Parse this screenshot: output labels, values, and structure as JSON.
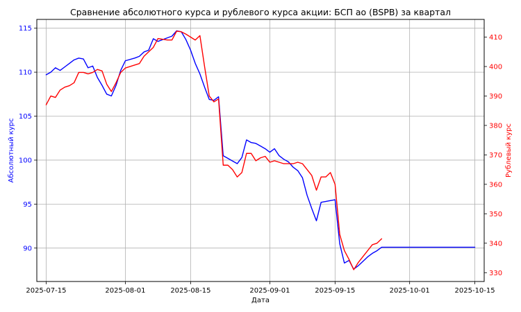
{
  "chart_data": {
    "type": "line",
    "title": "Сравнение абсолютного курса и рублевого курса акции: БСП ао (BSPB) за квартал",
    "xlabel": "Дата",
    "ylabel_left": "Абсолютный курс",
    "ylabel_right": "Рублевый курс",
    "xlim": [
      "2025-07-13",
      "2025-10-17"
    ],
    "ylim_left": [
      86.2,
      116.0
    ],
    "ylim_right": [
      327.0,
      416.0
    ],
    "x_ticks": [
      "2025-07-15",
      "2025-08-01",
      "2025-08-15",
      "2025-09-01",
      "2025-09-15",
      "2025-10-01",
      "2025-10-15"
    ],
    "y_ticks_left": [
      90,
      95,
      100,
      105,
      110,
      115
    ],
    "y_ticks_right": [
      330,
      340,
      350,
      360,
      370,
      380,
      390,
      400,
      410
    ],
    "grid": true,
    "colors": {
      "left": "#0000ff",
      "right": "#ff0000",
      "grid": "#b0b0b0"
    },
    "series": [
      {
        "axis": "left",
        "color": "#0000ff",
        "points": [
          [
            "2025-07-15",
            109.7
          ],
          [
            "2025-07-16",
            110.0
          ],
          [
            "2025-07-17",
            110.5
          ],
          [
            "2025-07-18",
            110.2
          ],
          [
            "2025-07-19",
            110.6
          ],
          [
            "2025-07-20",
            111.0
          ],
          [
            "2025-07-21",
            111.4
          ],
          [
            "2025-07-22",
            111.6
          ],
          [
            "2025-07-23",
            111.5
          ],
          [
            "2025-07-24",
            110.5
          ],
          [
            "2025-07-25",
            110.7
          ],
          [
            "2025-07-26",
            109.4
          ],
          [
            "2025-07-27",
            108.5
          ],
          [
            "2025-07-28",
            107.5
          ],
          [
            "2025-07-29",
            107.3
          ],
          [
            "2025-07-30",
            108.5
          ],
          [
            "2025-07-31",
            110.2
          ],
          [
            "2025-08-01",
            111.3
          ],
          [
            "2025-08-03",
            111.6
          ],
          [
            "2025-08-04",
            111.8
          ],
          [
            "2025-08-05",
            112.3
          ],
          [
            "2025-08-06",
            112.5
          ],
          [
            "2025-08-07",
            113.8
          ],
          [
            "2025-08-08",
            113.5
          ],
          [
            "2025-08-10",
            113.9
          ],
          [
            "2025-08-11",
            114.1
          ],
          [
            "2025-08-12",
            114.7
          ],
          [
            "2025-08-13",
            114.6
          ],
          [
            "2025-08-14",
            113.7
          ],
          [
            "2025-08-15",
            112.5
          ],
          [
            "2025-08-16",
            111.0
          ],
          [
            "2025-08-17",
            109.8
          ],
          [
            "2025-08-18",
            108.3
          ],
          [
            "2025-08-19",
            106.9
          ],
          [
            "2025-08-20",
            106.8
          ],
          [
            "2025-08-21",
            107.2
          ],
          [
            "2025-08-22",
            100.5
          ],
          [
            "2025-08-23",
            100.2
          ],
          [
            "2025-08-24",
            99.9
          ],
          [
            "2025-08-25",
            99.6
          ],
          [
            "2025-08-26",
            100.3
          ],
          [
            "2025-08-27",
            102.3
          ],
          [
            "2025-08-28",
            102.0
          ],
          [
            "2025-08-29",
            101.9
          ],
          [
            "2025-08-30",
            101.6
          ],
          [
            "2025-08-31",
            101.3
          ],
          [
            "2025-09-01",
            100.9
          ],
          [
            "2025-09-02",
            101.3
          ],
          [
            "2025-09-03",
            100.5
          ],
          [
            "2025-09-04",
            100.1
          ],
          [
            "2025-09-05",
            99.8
          ],
          [
            "2025-09-06",
            99.2
          ],
          [
            "2025-09-07",
            98.8
          ],
          [
            "2025-09-08",
            98.0
          ],
          [
            "2025-09-09",
            96.0
          ],
          [
            "2025-09-10",
            94.5
          ],
          [
            "2025-09-11",
            93.1
          ],
          [
            "2025-09-12",
            95.2
          ],
          [
            "2025-09-13",
            95.3
          ],
          [
            "2025-09-14",
            95.4
          ],
          [
            "2025-09-15",
            95.5
          ],
          [
            "2025-09-16",
            90.5
          ],
          [
            "2025-09-17",
            88.3
          ],
          [
            "2025-09-18",
            88.6
          ],
          [
            "2025-09-19",
            87.6
          ],
          [
            "2025-09-20",
            88.0
          ],
          [
            "2025-09-21",
            88.5
          ],
          [
            "2025-09-22",
            89.0
          ],
          [
            "2025-09-23",
            89.4
          ],
          [
            "2025-09-24",
            89.7
          ],
          [
            "2025-09-25",
            90.1
          ],
          [
            "2025-10-15",
            90.1
          ]
        ]
      },
      {
        "axis": "right",
        "color": "#ff0000",
        "points": [
          [
            "2025-07-15",
            387.0
          ],
          [
            "2025-07-16",
            390.0
          ],
          [
            "2025-07-17",
            389.5
          ],
          [
            "2025-07-18",
            392.0
          ],
          [
            "2025-07-19",
            393.0
          ],
          [
            "2025-07-20",
            393.5
          ],
          [
            "2025-07-21",
            394.5
          ],
          [
            "2025-07-22",
            398.0
          ],
          [
            "2025-07-23",
            398.0
          ],
          [
            "2025-07-24",
            397.5
          ],
          [
            "2025-07-25",
            398.0
          ],
          [
            "2025-07-26",
            399.0
          ],
          [
            "2025-07-27",
            398.5
          ],
          [
            "2025-07-28",
            394.0
          ],
          [
            "2025-07-29",
            391.5
          ],
          [
            "2025-07-30",
            394.5
          ],
          [
            "2025-07-31",
            398.0
          ],
          [
            "2025-08-01",
            399.5
          ],
          [
            "2025-08-03",
            400.5
          ],
          [
            "2025-08-04",
            401.0
          ],
          [
            "2025-08-05",
            403.5
          ],
          [
            "2025-08-06",
            405.0
          ],
          [
            "2025-08-07",
            406.5
          ],
          [
            "2025-08-08",
            409.5
          ],
          [
            "2025-08-10",
            409.0
          ],
          [
            "2025-08-11",
            409.0
          ],
          [
            "2025-08-12",
            412.0
          ],
          [
            "2025-08-13",
            411.8
          ],
          [
            "2025-08-14",
            411.0
          ],
          [
            "2025-08-15",
            410.0
          ],
          [
            "2025-08-16",
            409.0
          ],
          [
            "2025-08-17",
            410.5
          ],
          [
            "2025-08-18",
            400.0
          ],
          [
            "2025-08-19",
            390.0
          ],
          [
            "2025-08-20",
            388.0
          ],
          [
            "2025-08-21",
            389.0
          ],
          [
            "2025-08-22",
            366.5
          ],
          [
            "2025-08-23",
            366.5
          ],
          [
            "2025-08-24",
            365.0
          ],
          [
            "2025-08-25",
            362.5
          ],
          [
            "2025-08-26",
            364.0
          ],
          [
            "2025-08-27",
            370.5
          ],
          [
            "2025-08-28",
            370.5
          ],
          [
            "2025-08-29",
            368.0
          ],
          [
            "2025-08-30",
            369.0
          ],
          [
            "2025-08-31",
            369.5
          ],
          [
            "2025-09-01",
            367.5
          ],
          [
            "2025-09-02",
            368.0
          ],
          [
            "2025-09-03",
            367.5
          ],
          [
            "2025-09-04",
            367.0
          ],
          [
            "2025-09-05",
            367.0
          ],
          [
            "2025-09-06",
            367.0
          ],
          [
            "2025-09-07",
            367.5
          ],
          [
            "2025-09-08",
            367.0
          ],
          [
            "2025-09-09",
            365.0
          ],
          [
            "2025-09-10",
            363.0
          ],
          [
            "2025-09-11",
            358.0
          ],
          [
            "2025-09-12",
            362.5
          ],
          [
            "2025-09-13",
            362.5
          ],
          [
            "2025-09-14",
            364.0
          ],
          [
            "2025-09-15",
            360.0
          ],
          [
            "2025-09-16",
            343.0
          ],
          [
            "2025-09-17",
            337.5
          ],
          [
            "2025-09-18",
            334.5
          ],
          [
            "2025-09-19",
            331.0
          ],
          [
            "2025-09-20",
            333.5
          ],
          [
            "2025-09-21",
            335.5
          ],
          [
            "2025-09-22",
            337.5
          ],
          [
            "2025-09-23",
            339.5
          ],
          [
            "2025-09-24",
            340.0
          ],
          [
            "2025-09-25",
            341.5
          ]
        ]
      }
    ]
  }
}
